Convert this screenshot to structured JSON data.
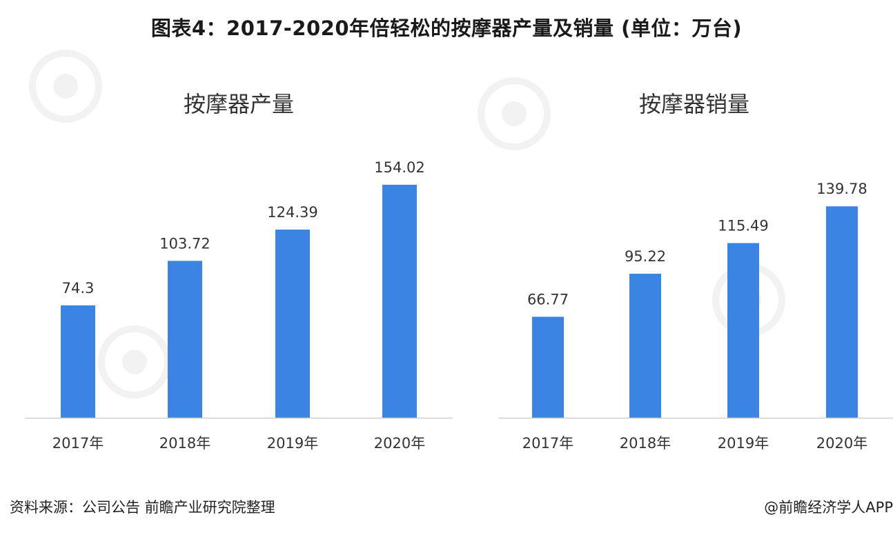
{
  "title": "图表4：2017-2020年倍轻松的按摩器产量及销量 (单位：万台)",
  "colors": {
    "bar": "#3b84e3",
    "axis": "#d0d0d0",
    "text": "#333333"
  },
  "chart_data": [
    {
      "type": "bar",
      "title": "按摩器产量",
      "categories": [
        "2017年",
        "2018年",
        "2019年",
        "2020年"
      ],
      "values": [
        74.3,
        103.72,
        124.39,
        154.02
      ],
      "value_labels": [
        "74.3",
        "103.72",
        "124.39",
        "154.02"
      ],
      "xlabel": "",
      "ylabel": "",
      "ylim": [
        0,
        154.02
      ],
      "grid": false,
      "legend": "none"
    },
    {
      "type": "bar",
      "title": "按摩器销量",
      "categories": [
        "2017年",
        "2018年",
        "2019年",
        "2020年"
      ],
      "values": [
        66.77,
        95.22,
        115.49,
        139.78
      ],
      "value_labels": [
        "66.77",
        "95.22",
        "115.49",
        "139.78"
      ],
      "xlabel": "",
      "ylabel": "",
      "ylim": [
        0,
        154.02
      ],
      "grid": false,
      "legend": "none"
    }
  ],
  "footer": {
    "source": "资料来源：公司公告 前瞻产业研究院整理",
    "credit": "@前瞻经济学人APP"
  }
}
